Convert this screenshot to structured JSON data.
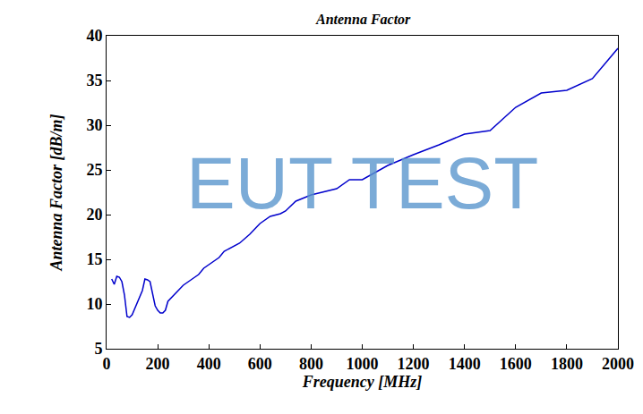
{
  "chart_data": {
    "type": "line",
    "title": "Antenna Factor",
    "x_label": "Frequency [MHz]",
    "y_label": "Antenna Factor [dB/m]",
    "annotations": [
      "EUT TEST"
    ],
    "x": [
      20,
      30,
      40,
      50,
      60,
      70,
      80,
      90,
      100,
      120,
      140,
      150,
      160,
      170,
      180,
      190,
      200,
      210,
      220,
      230,
      240,
      260,
      280,
      300,
      340,
      360,
      380,
      400,
      440,
      460,
      480,
      520,
      560,
      600,
      640,
      680,
      700,
      740,
      800,
      900,
      950,
      1000,
      1100,
      1200,
      1300,
      1400,
      1500,
      1600,
      1700,
      1800,
      1900,
      2000
    ],
    "series": [
      {
        "name": "Antenna Factor",
        "color": "#0000cc",
        "values": [
          12.8,
          12.2,
          13.1,
          13.0,
          12.5,
          11.0,
          8.6,
          8.5,
          8.8,
          10.2,
          11.5,
          12.8,
          12.7,
          12.5,
          11.0,
          9.8,
          9.3,
          9.0,
          9.0,
          9.3,
          10.3,
          10.9,
          11.6,
          12.1,
          12.9,
          13.3,
          14.0,
          14.4,
          15.2,
          15.9,
          16.2,
          16.8,
          17.8,
          19.0,
          19.8,
          20.1,
          20.4,
          21.5,
          22.2,
          22.9,
          23.9,
          23.9,
          25.5,
          26.7,
          27.8,
          29.0,
          29.4,
          32.0,
          33.6,
          33.9,
          35.2,
          38.6
        ]
      }
    ],
    "xlim": [
      0,
      2000
    ],
    "xticks": [
      0,
      200,
      400,
      600,
      800,
      1000,
      1200,
      1400,
      1600,
      1800,
      2000
    ],
    "ylim": [
      5,
      40
    ],
    "yticks": [
      5,
      10,
      15,
      20,
      25,
      30,
      35,
      40
    ],
    "grid": false
  }
}
